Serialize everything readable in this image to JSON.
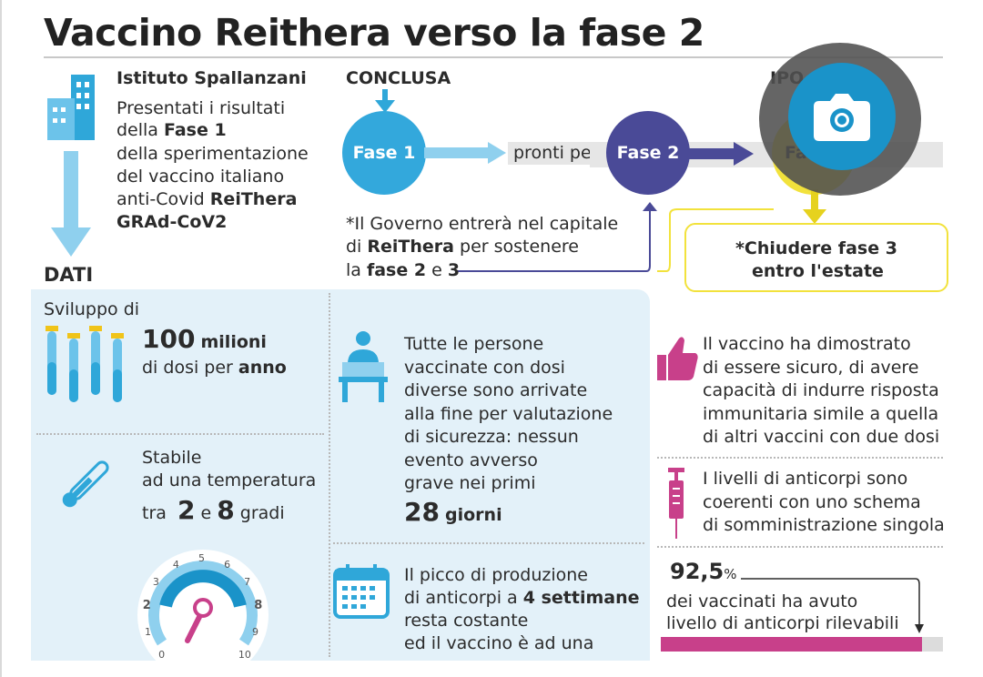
{
  "title": "Vaccino Reithera verso la fase 2",
  "intro": {
    "institute": "Istituto Spallanzani",
    "lines": [
      "Presentati i risultati",
      "della ",
      "Fase 1",
      "della sperimentazione",
      "del vaccino italiano",
      "anti-Covid ",
      "ReiThera",
      "GRAd-CoV2"
    ]
  },
  "dati_label": "DATI",
  "timeline": {
    "conclusa": "CONCLUSA",
    "ipotesi_partial": "IPO",
    "fase1": "Fase 1",
    "pronti_per": "pronti per",
    "fase2": "Fase 2",
    "fase3_partial": "Fa",
    "governo_lines": [
      "*Il Governo entrerà nel capitale",
      "di ",
      "ReiThera",
      " per sostenere",
      "la ",
      "fase 2",
      " e ",
      "3"
    ],
    "chiudere_lines": [
      "*Chiudere fase 3",
      "entro l'estate"
    ]
  },
  "data": {
    "sviluppo": "Sviluppo di",
    "milioni_num": "100",
    "milioni_word": "milioni",
    "dosi_per": "di dosi per ",
    "anno": "anno",
    "stabile": "Stabile",
    "temperatura": "ad una temperatura",
    "tra": "tra",
    "t_low": "2",
    "e": "e",
    "t_high": "8",
    "gradi": "gradi",
    "gauge_ticks": [
      "0",
      "1",
      "2",
      "3",
      "4",
      "5",
      "6",
      "7",
      "8",
      "9",
      "10"
    ],
    "persone_lines": [
      "Tutte le persone",
      "vaccinate con dosi",
      "diverse sono arrivate",
      "alla fine per valutazione",
      "di sicurezza: nessun",
      "evento avverso",
      "grave nei primi"
    ],
    "giorni_num": "28",
    "giorni_word": "giorni",
    "picco_lines": [
      "Il picco di produzione",
      "di anticorpi a ",
      "4 settimane",
      "resta costante",
      "ed il vaccino è ad una"
    ],
    "sicuro_lines": [
      "Il vaccino ha dimostrato",
      "di essere sicuro, di avere",
      "capacità di indurre risposta",
      "immunitaria simile a quella",
      "di altri vaccini con due dosi"
    ],
    "anticorpi_lines": [
      "I livelli di anticorpi sono",
      "coerenti con uno schema",
      "di somministrazione singola"
    ],
    "percent_value": "92,5",
    "percent_sign": "%",
    "percent_lines": [
      "dei vaccinati ha avuto",
      "livello di anticorpi rilevabili"
    ],
    "percent_fraction": 0.925
  },
  "colors": {
    "blue": "#2fa7d9",
    "purple": "#4a4a97",
    "yellow": "#f2e23c",
    "magenta": "#c8408a",
    "panel": "#e3f1f9",
    "camera": "#1a93c9"
  },
  "icons": [
    "building-icon",
    "arrow-down-icon",
    "test-tubes-icon",
    "thermometer-icon",
    "gauge-icon",
    "person-reading-icon",
    "calendar-icon",
    "thumbs-up-icon",
    "syringe-icon",
    "camera-icon"
  ]
}
